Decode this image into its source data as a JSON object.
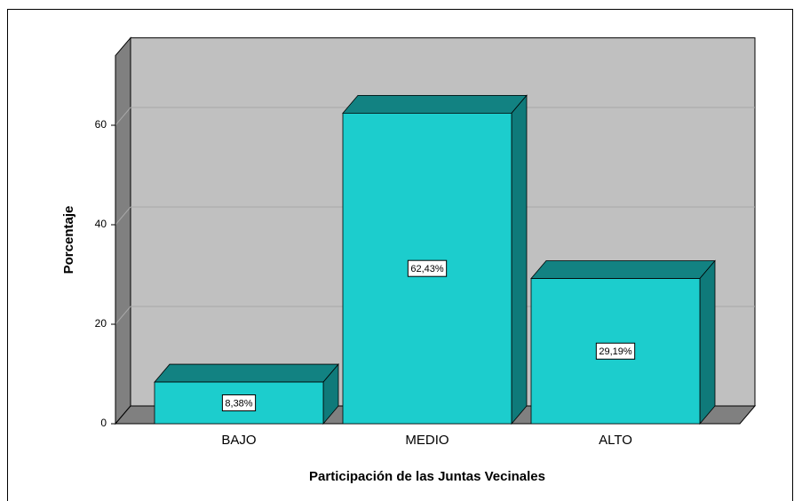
{
  "chart_data": {
    "type": "bar3d",
    "categories": [
      "BAJO",
      "MEDIO",
      "ALTO"
    ],
    "values": [
      8.38,
      62.43,
      29.19
    ],
    "value_labels": [
      "8,38%",
      "62,43%",
      "29,19%"
    ],
    "color": "#1ccdcd",
    "xlabel": "Participación de las Juntas Vecinales",
    "ylabel": "Porcentaje",
    "ylim": [
      0,
      74
    ],
    "yticks": [
      0,
      20,
      40,
      60
    ],
    "grid": true
  }
}
